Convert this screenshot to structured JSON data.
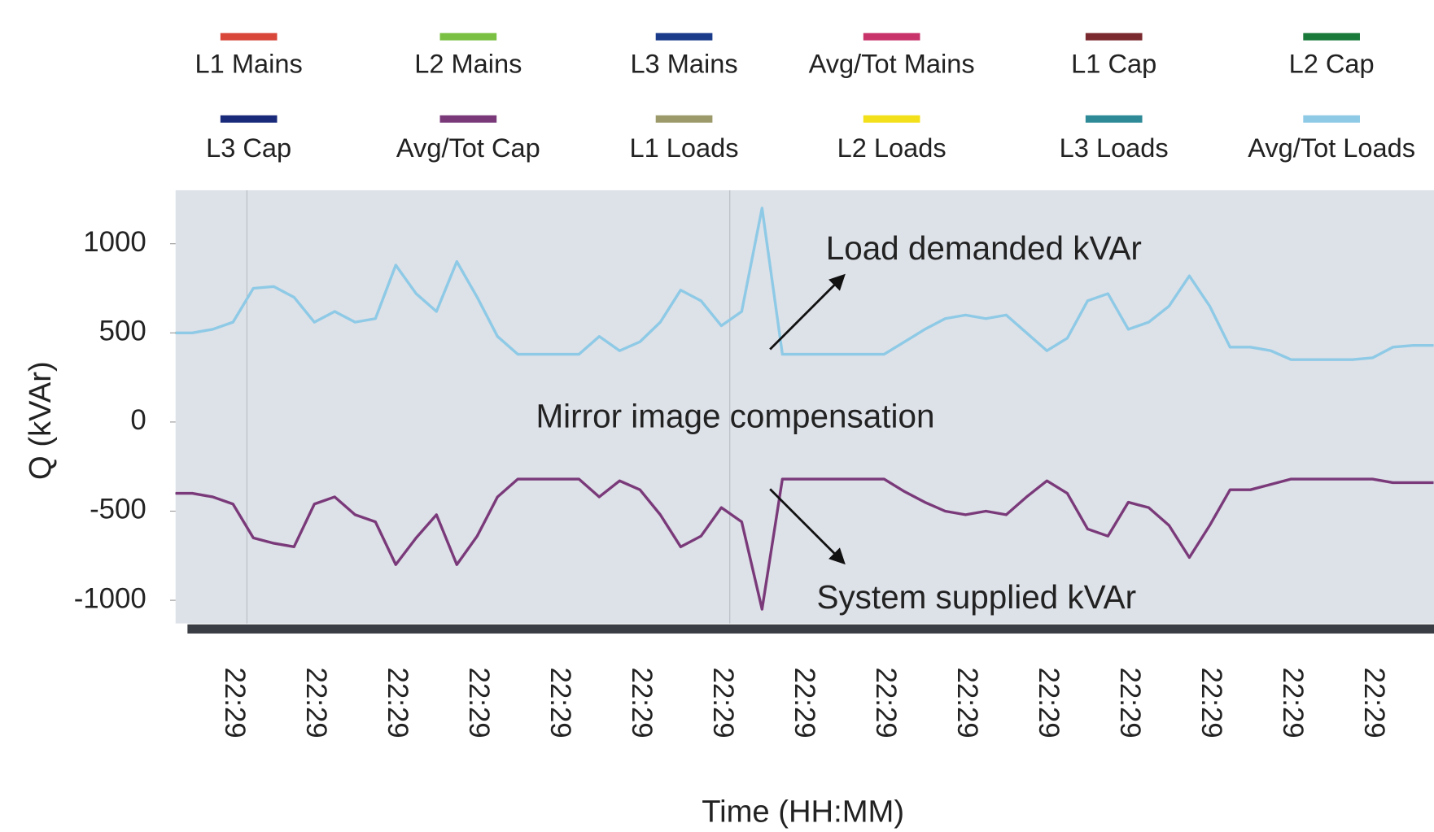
{
  "chart_data": {
    "type": "line",
    "y_label": "Q (kVAr)",
    "x_label": "Time (HH:MM)",
    "annotations": [
      "Load demanded kVAr",
      "Mirror image compensation",
      "System supplied kVAr"
    ],
    "categories": [
      null,
      null,
      null,
      "22:29",
      null,
      null,
      null,
      "22:29",
      null,
      null,
      null,
      "22:29",
      null,
      null,
      null,
      "22:29",
      null,
      null,
      null,
      "22:29",
      null,
      null,
      null,
      "22:29",
      null,
      null,
      null,
      "22:29",
      null,
      null,
      null,
      "22:29",
      null,
      null,
      null,
      "22:29",
      null,
      null,
      null,
      "22:29",
      null,
      null,
      null,
      "22:29",
      null,
      null,
      null,
      "22:29",
      null,
      null,
      null,
      "22:29",
      null,
      null,
      null,
      "22:29",
      null,
      null,
      null,
      "22:29",
      null,
      null,
      null
    ],
    "ylim": [
      -1130,
      1300
    ],
    "yticks": [
      1000,
      500,
      0,
      -500,
      -1000
    ],
    "legend": "top",
    "series": [
      {
        "name": "L1 Mains",
        "color": "#d9463a",
        "values": [
          null,
          null,
          null,
          null,
          null,
          null,
          null,
          null,
          null,
          null,
          null,
          null,
          null,
          null,
          null,
          null,
          null,
          null,
          null,
          null,
          null,
          null,
          null,
          null,
          null,
          null,
          null,
          null,
          null,
          null,
          null,
          null,
          null,
          null,
          null,
          null,
          null,
          null,
          null,
          null,
          null,
          null,
          null,
          null,
          null,
          null,
          null,
          null,
          null,
          null,
          null,
          null,
          null,
          null,
          null,
          null,
          null,
          null,
          null,
          null,
          null,
          null,
          null
        ]
      },
      {
        "name": "L2 Mains",
        "color": "#7ac143",
        "values": [
          null,
          null,
          null,
          null,
          null,
          null,
          null,
          null,
          null,
          null,
          null,
          null,
          null,
          null,
          null,
          null,
          null,
          null,
          null,
          null,
          null,
          null,
          null,
          null,
          null,
          null,
          null,
          null,
          null,
          null,
          null,
          null,
          null,
          null,
          null,
          null,
          null,
          null,
          null,
          null,
          null,
          null,
          null,
          null,
          null,
          null,
          null,
          null,
          null,
          null,
          null,
          null,
          null,
          null,
          null,
          null,
          null,
          null,
          null,
          null,
          null,
          null,
          null
        ]
      },
      {
        "name": "L3 Mains",
        "color": "#1a3a8a",
        "values": [
          null,
          null,
          null,
          null,
          null,
          null,
          null,
          null,
          null,
          null,
          null,
          null,
          null,
          null,
          null,
          null,
          null,
          null,
          null,
          null,
          null,
          null,
          null,
          null,
          null,
          null,
          null,
          null,
          null,
          null,
          null,
          null,
          null,
          null,
          null,
          null,
          null,
          null,
          null,
          null,
          null,
          null,
          null,
          null,
          null,
          null,
          null,
          null,
          null,
          null,
          null,
          null,
          null,
          null,
          null,
          null,
          null,
          null,
          null,
          null,
          null,
          null,
          null
        ]
      },
      {
        "name": "Avg/Tot Mains",
        "color": "#c8336a",
        "values": [
          null,
          null,
          null,
          null,
          null,
          null,
          null,
          null,
          null,
          null,
          null,
          null,
          null,
          null,
          null,
          null,
          null,
          null,
          null,
          null,
          null,
          null,
          null,
          null,
          null,
          null,
          null,
          null,
          null,
          null,
          null,
          null,
          null,
          null,
          null,
          null,
          null,
          null,
          null,
          null,
          null,
          null,
          null,
          null,
          null,
          null,
          null,
          null,
          null,
          null,
          null,
          null,
          null,
          null,
          null,
          null,
          null,
          null,
          null,
          null,
          null,
          null,
          null
        ]
      },
      {
        "name": "L1 Cap",
        "color": "#7a2a2e",
        "values": [
          -400,
          -400,
          -420,
          -460,
          -650,
          -680,
          -700,
          -460,
          -420,
          -520,
          -560,
          -800,
          -650,
          -520,
          -800,
          -640,
          -420,
          -320,
          -320,
          -320,
          -320,
          -420,
          -330,
          -380,
          -520,
          -700,
          -640,
          -480,
          -560,
          -1050,
          -320,
          -320,
          -320,
          -320,
          -320,
          -320,
          -390,
          -450,
          -500,
          -520,
          -500,
          -520,
          -420,
          -330,
          -400,
          -600,
          -640,
          -450,
          -480,
          -580,
          -760,
          -580,
          -380,
          -380,
          -350,
          -320,
          -320,
          -320,
          -320,
          -320,
          -340,
          -340,
          -340
        ]
      },
      {
        "name": "L2 Cap",
        "color": "#1a7a3a",
        "values": [
          -400,
          -400,
          -420,
          -460,
          -650,
          -680,
          -700,
          -460,
          -420,
          -520,
          -560,
          -800,
          -650,
          -520,
          -800,
          -640,
          -420,
          -320,
          -320,
          -320,
          -320,
          -420,
          -330,
          -380,
          -520,
          -700,
          -640,
          -480,
          -560,
          -1050,
          -320,
          -320,
          -320,
          -320,
          -320,
          -320,
          -390,
          -450,
          -500,
          -520,
          -500,
          -520,
          -420,
          -330,
          -400,
          -600,
          -640,
          -450,
          -480,
          -580,
          -760,
          -580,
          -380,
          -380,
          -350,
          -320,
          -320,
          -320,
          -320,
          -320,
          -340,
          -340,
          -340
        ]
      },
      {
        "name": "L3 Cap",
        "color": "#1a2a7a",
        "values": [
          -400,
          -400,
          -420,
          -460,
          -650,
          -680,
          -700,
          -460,
          -420,
          -520,
          -560,
          -800,
          -650,
          -520,
          -800,
          -640,
          -420,
          -320,
          -320,
          -320,
          -320,
          -420,
          -330,
          -380,
          -520,
          -700,
          -640,
          -480,
          -560,
          -1050,
          -320,
          -320,
          -320,
          -320,
          -320,
          -320,
          -390,
          -450,
          -500,
          -520,
          -500,
          -520,
          -420,
          -330,
          -400,
          -600,
          -640,
          -450,
          -480,
          -580,
          -760,
          -580,
          -380,
          -380,
          -350,
          -320,
          -320,
          -320,
          -320,
          -320,
          -340,
          -340,
          -340
        ]
      },
      {
        "name": "Avg/Tot Cap",
        "color": "#7a3a7a",
        "values": [
          -400,
          -400,
          -420,
          -460,
          -650,
          -680,
          -700,
          -460,
          -420,
          -520,
          -560,
          -800,
          -650,
          -520,
          -800,
          -640,
          -420,
          -320,
          -320,
          -320,
          -320,
          -420,
          -330,
          -380,
          -520,
          -700,
          -640,
          -480,
          -560,
          -1050,
          -320,
          -320,
          -320,
          -320,
          -320,
          -320,
          -390,
          -450,
          -500,
          -520,
          -500,
          -520,
          -420,
          -330,
          -400,
          -600,
          -640,
          -450,
          -480,
          -580,
          -760,
          -580,
          -380,
          -380,
          -350,
          -320,
          -320,
          -320,
          -320,
          -320,
          -340,
          -340,
          -340
        ]
      },
      {
        "name": "L1 Loads",
        "color": "#9c9a6a",
        "values": [
          500,
          500,
          520,
          560,
          750,
          760,
          700,
          560,
          620,
          560,
          580,
          880,
          720,
          620,
          900,
          700,
          480,
          380,
          380,
          380,
          380,
          480,
          400,
          450,
          560,
          740,
          680,
          540,
          620,
          1200,
          380,
          380,
          380,
          380,
          380,
          380,
          450,
          520,
          580,
          600,
          580,
          600,
          500,
          400,
          470,
          680,
          720,
          520,
          560,
          650,
          820,
          650,
          420,
          420,
          400,
          350,
          350,
          350,
          350,
          360,
          420,
          430,
          430
        ]
      },
      {
        "name": "L2 Loads",
        "color": "#f3e01a",
        "values": [
          500,
          500,
          520,
          560,
          750,
          760,
          700,
          560,
          620,
          560,
          580,
          880,
          720,
          620,
          900,
          700,
          480,
          380,
          380,
          380,
          380,
          480,
          400,
          450,
          560,
          740,
          680,
          540,
          620,
          1200,
          380,
          380,
          380,
          380,
          380,
          380,
          450,
          520,
          580,
          600,
          580,
          600,
          500,
          400,
          470,
          680,
          720,
          520,
          560,
          650,
          820,
          650,
          420,
          420,
          400,
          350,
          350,
          350,
          350,
          360,
          420,
          430,
          430
        ]
      },
      {
        "name": "L3 Loads",
        "color": "#2d8a96",
        "values": [
          500,
          500,
          520,
          560,
          750,
          760,
          700,
          560,
          620,
          560,
          580,
          880,
          720,
          620,
          900,
          700,
          480,
          380,
          380,
          380,
          380,
          480,
          400,
          450,
          560,
          740,
          680,
          540,
          620,
          1200,
          380,
          380,
          380,
          380,
          380,
          380,
          450,
          520,
          580,
          600,
          580,
          600,
          500,
          400,
          470,
          680,
          720,
          520,
          560,
          650,
          820,
          650,
          420,
          420,
          400,
          350,
          350,
          350,
          350,
          360,
          420,
          430,
          430
        ]
      },
      {
        "name": "Avg/Tot Loads",
        "color": "#8ecae6",
        "values": [
          500,
          500,
          520,
          560,
          750,
          760,
          700,
          560,
          620,
          560,
          580,
          880,
          720,
          620,
          900,
          700,
          480,
          380,
          380,
          380,
          380,
          480,
          400,
          450,
          560,
          740,
          680,
          540,
          620,
          1200,
          380,
          380,
          380,
          380,
          380,
          380,
          450,
          520,
          580,
          600,
          580,
          600,
          500,
          400,
          470,
          680,
          720,
          520,
          560,
          650,
          820,
          650,
          420,
          420,
          400,
          350,
          350,
          350,
          350,
          360,
          420,
          430,
          430
        ]
      }
    ]
  }
}
